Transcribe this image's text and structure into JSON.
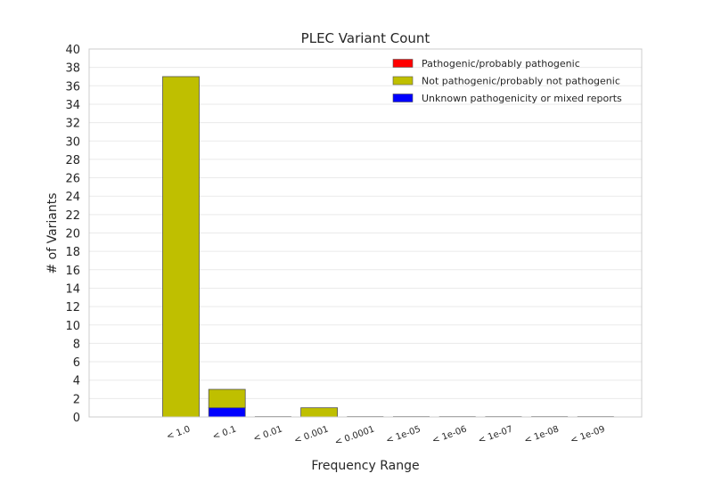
{
  "chart_data": {
    "type": "bar",
    "stacked": true,
    "title": "PLEC Variant Count",
    "xlabel": "Frequency Range",
    "ylabel": "# of Variants",
    "categories": [
      "< 1.0",
      "< 0.1",
      "< 0.01",
      "< 0.001",
      "< 0.0001",
      "< 1e-05",
      "< 1e-06",
      "< 1e-07",
      "< 1e-08",
      "< 1e-09"
    ],
    "ylim": [
      0,
      40
    ],
    "yticks": [
      0,
      2,
      4,
      6,
      8,
      10,
      12,
      14,
      16,
      18,
      20,
      22,
      24,
      26,
      28,
      30,
      32,
      34,
      36,
      38,
      40
    ],
    "grid": true,
    "legend_position": "top-right",
    "series": [
      {
        "name": "Pathogenic/probably pathogenic",
        "color": "#ff0000",
        "values": [
          0,
          0,
          0,
          0,
          0,
          0,
          0,
          0,
          0,
          0
        ]
      },
      {
        "name": "Not pathogenic/probably not pathogenic",
        "color": "#bfbf00",
        "values": [
          37,
          2,
          0,
          1,
          0,
          0,
          0,
          0,
          0,
          0
        ]
      },
      {
        "name": "Unknown pathogenicity or mixed reports",
        "color": "#0000ff",
        "values": [
          0,
          1,
          0,
          0,
          0,
          0,
          0,
          0,
          0,
          0
        ]
      }
    ],
    "stack_order": [
      2,
      0,
      1
    ]
  }
}
